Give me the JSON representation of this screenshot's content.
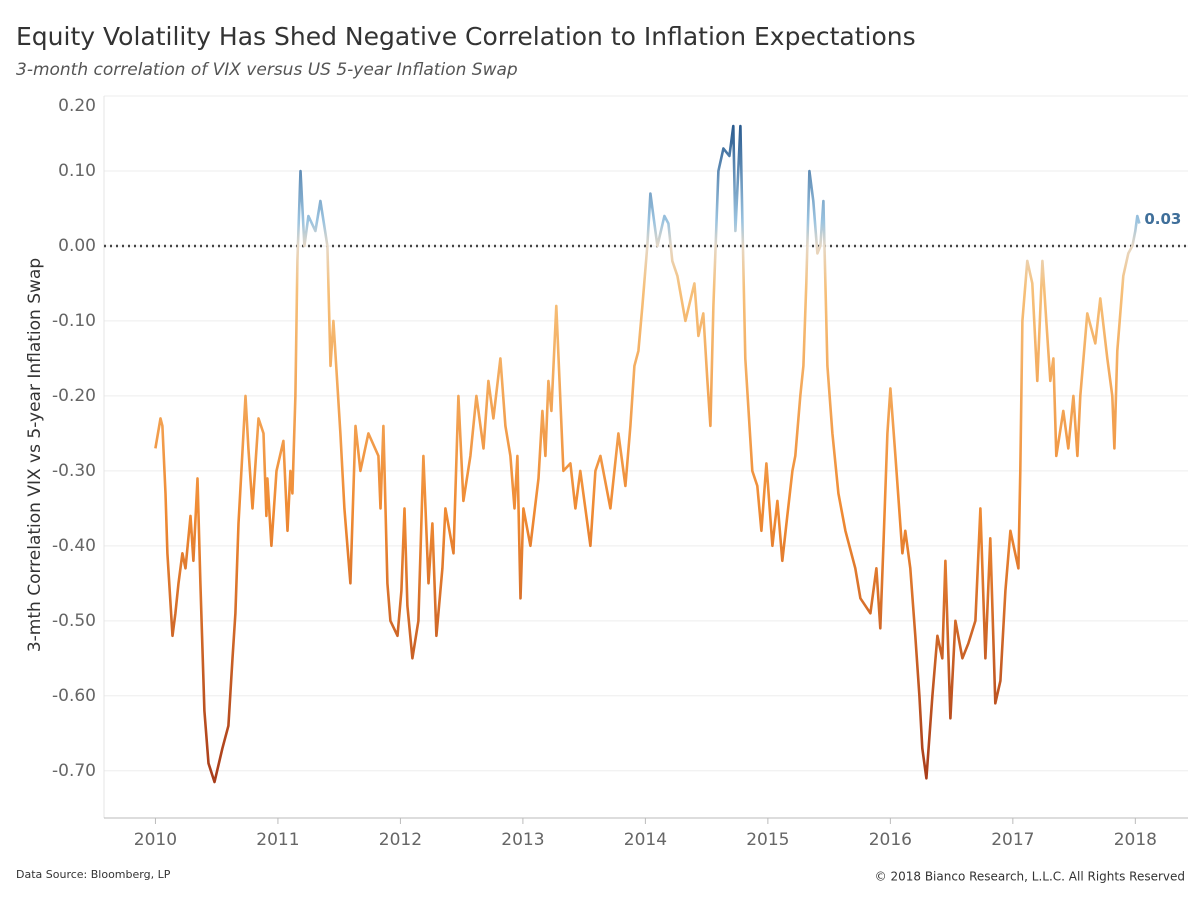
{
  "chart_data": {
    "type": "line",
    "title": "Equity Volatility Has Shed Negative Correlation to Inflation Expectations",
    "subtitle": "3-month correlation of VIX versus US 5-year Inflation Swap",
    "y_label": "3-mth Correlation VIX vs 5-year Inflation Swap",
    "source": "Data Source: Bloomberg, LP",
    "copyright": "© 2018 Bianco Research, L.L.C. All Rights Reserved",
    "end_value_label": "0.03",
    "reference_line": 0,
    "grid": true,
    "colors": [
      "#2a5b8f",
      "#9cc4e0",
      "#e6d8c6",
      "#f6c07a",
      "#ef8a33",
      "#a83c1a"
    ],
    "xlim": [
      2009.58,
      2018.43
    ],
    "xticks": [
      2010,
      2011,
      2012,
      2013,
      2014,
      2015,
      2016,
      2017,
      2018
    ],
    "ylim": [
      -0.763,
      0.2
    ],
    "yticks": [
      {
        "value": 0.2,
        "label": "0.20"
      },
      {
        "value": 0.1,
        "label": "0.10"
      },
      {
        "value": 0,
        "label": "0.00"
      },
      {
        "value": -0.1,
        "label": "-0.10"
      },
      {
        "value": -0.2,
        "label": "-0.20"
      },
      {
        "value": -0.3,
        "label": "-0.30"
      },
      {
        "value": -0.4,
        "label": "-0.40"
      },
      {
        "value": -0.5,
        "label": "-0.50"
      },
      {
        "value": -0.6,
        "label": "-0.60"
      },
      {
        "value": -0.7,
        "label": "-0.70"
      }
    ],
    "x": [
      2010.0,
      2010.041,
      2010.057,
      2010.082,
      2010.098,
      2010.139,
      2010.163,
      2010.188,
      2010.22,
      2010.245,
      2010.286,
      2010.31,
      2010.343,
      2010.367,
      2010.4,
      2010.433,
      2010.482,
      2010.547,
      2010.596,
      2010.629,
      2010.653,
      2010.678,
      2010.702,
      2010.735,
      2010.759,
      2010.792,
      2010.841,
      2010.882,
      2010.906,
      2010.914,
      2010.947,
      2010.988,
      2011.045,
      2011.078,
      2011.102,
      2011.118,
      2011.143,
      2011.159,
      2011.184,
      2011.216,
      2011.249,
      2011.306,
      2011.347,
      2011.404,
      2011.429,
      2011.453,
      2011.51,
      2011.543,
      2011.592,
      2011.633,
      2011.673,
      2011.739,
      2011.82,
      2011.837,
      2011.861,
      2011.894,
      2011.918,
      2011.976,
      2012.008,
      2012.033,
      2012.057,
      2012.098,
      2012.147,
      2012.188,
      2012.229,
      2012.261,
      2012.294,
      2012.343,
      2012.367,
      2012.433,
      2012.473,
      2012.514,
      2012.571,
      2012.62,
      2012.678,
      2012.718,
      2012.759,
      2012.816,
      2012.857,
      2012.898,
      2012.931,
      2012.955,
      2012.98,
      2013.004,
      2013.061,
      2013.127,
      2013.159,
      2013.184,
      2013.208,
      2013.233,
      2013.273,
      2013.331,
      2013.388,
      2013.429,
      2013.469,
      2013.551,
      2013.592,
      2013.633,
      2013.714,
      2013.78,
      2013.837,
      2013.878,
      2013.91,
      2013.943,
      2013.976,
      2014.016,
      2014.041,
      2014.098,
      2014.155,
      2014.188,
      2014.22,
      2014.261,
      2014.327,
      2014.4,
      2014.433,
      2014.473,
      2014.506,
      2014.531,
      2014.555,
      2014.596,
      2014.637,
      2014.686,
      2014.718,
      2014.735,
      2014.776,
      2014.816,
      2014.873,
      2014.914,
      2014.947,
      2014.988,
      2015.037,
      2015.078,
      2015.118,
      2015.159,
      2015.2,
      2015.224,
      2015.265,
      2015.29,
      2015.314,
      2015.339,
      2015.371,
      2015.404,
      2015.429,
      2015.453,
      2015.486,
      2015.527,
      2015.576,
      2015.633,
      2015.714,
      2015.755,
      2015.837,
      2015.886,
      2015.918,
      2015.943,
      2015.976,
      2016.0,
      2016.041,
      2016.098,
      2016.122,
      2016.163,
      2016.204,
      2016.237,
      2016.261,
      2016.294,
      2016.343,
      2016.384,
      2016.424,
      2016.449,
      2016.49,
      2016.531,
      2016.588,
      2016.637,
      2016.694,
      2016.735,
      2016.776,
      2016.816,
      2016.857,
      2016.898,
      2016.939,
      2016.98,
      2017.045,
      2017.061,
      2017.078,
      2017.118,
      2017.159,
      2017.2,
      2017.241,
      2017.273,
      2017.306,
      2017.331,
      2017.355,
      2017.412,
      2017.453,
      2017.494,
      2017.527,
      2017.551,
      2017.608,
      2017.673,
      2017.714,
      2017.771,
      2017.812,
      2017.829,
      2017.853,
      2017.902,
      2017.943,
      2017.976,
      2018.0,
      2018.016,
      2018.033
    ],
    "values": [
      -0.27,
      -0.23,
      -0.24,
      -0.33,
      -0.41,
      -0.52,
      -0.49,
      -0.45,
      -0.41,
      -0.43,
      -0.36,
      -0.42,
      -0.31,
      -0.45,
      -0.62,
      -0.69,
      -0.715,
      -0.67,
      -0.64,
      -0.55,
      -0.49,
      -0.37,
      -0.3,
      -0.2,
      -0.27,
      -0.35,
      -0.23,
      -0.25,
      -0.36,
      -0.31,
      -0.4,
      -0.3,
      -0.26,
      -0.38,
      -0.3,
      -0.33,
      -0.2,
      -0.02,
      0.1,
      0.0,
      0.04,
      0.02,
      0.06,
      0.0,
      -0.16,
      -0.1,
      -0.25,
      -0.35,
      -0.45,
      -0.24,
      -0.3,
      -0.25,
      -0.28,
      -0.35,
      -0.24,
      -0.45,
      -0.5,
      -0.52,
      -0.46,
      -0.35,
      -0.48,
      -0.55,
      -0.5,
      -0.28,
      -0.45,
      -0.37,
      -0.52,
      -0.43,
      -0.35,
      -0.41,
      -0.2,
      -0.34,
      -0.28,
      -0.2,
      -0.27,
      -0.18,
      -0.23,
      -0.15,
      -0.24,
      -0.28,
      -0.35,
      -0.28,
      -0.47,
      -0.35,
      -0.4,
      -0.31,
      -0.22,
      -0.28,
      -0.18,
      -0.22,
      -0.08,
      -0.3,
      -0.29,
      -0.35,
      -0.3,
      -0.4,
      -0.3,
      -0.28,
      -0.35,
      -0.25,
      -0.32,
      -0.24,
      -0.16,
      -0.14,
      -0.08,
      0.0,
      0.07,
      0.0,
      0.04,
      0.03,
      -0.02,
      -0.04,
      -0.1,
      -0.05,
      -0.12,
      -0.09,
      -0.18,
      -0.24,
      -0.08,
      0.1,
      0.13,
      0.12,
      0.16,
      0.02,
      0.16,
      -0.15,
      -0.3,
      -0.32,
      -0.38,
      -0.29,
      -0.4,
      -0.34,
      -0.42,
      -0.36,
      -0.3,
      -0.28,
      -0.2,
      -0.16,
      -0.05,
      0.1,
      0.06,
      -0.01,
      0.0,
      0.06,
      -0.16,
      -0.25,
      -0.33,
      -0.38,
      -0.43,
      -0.47,
      -0.49,
      -0.43,
      -0.51,
      -0.4,
      -0.25,
      -0.19,
      -0.28,
      -0.41,
      -0.38,
      -0.43,
      -0.52,
      -0.6,
      -0.67,
      -0.71,
      -0.6,
      -0.52,
      -0.55,
      -0.42,
      -0.63,
      -0.5,
      -0.55,
      -0.53,
      -0.5,
      -0.35,
      -0.55,
      -0.39,
      -0.61,
      -0.58,
      -0.46,
      -0.38,
      -0.43,
      -0.3,
      -0.1,
      -0.02,
      -0.05,
      -0.18,
      -0.02,
      -0.1,
      -0.18,
      -0.15,
      -0.28,
      -0.22,
      -0.27,
      -0.2,
      -0.28,
      -0.2,
      -0.09,
      -0.13,
      -0.07,
      -0.15,
      -0.2,
      -0.27,
      -0.14,
      -0.04,
      -0.01,
      0.0,
      0.02,
      0.04,
      0.03
    ]
  }
}
